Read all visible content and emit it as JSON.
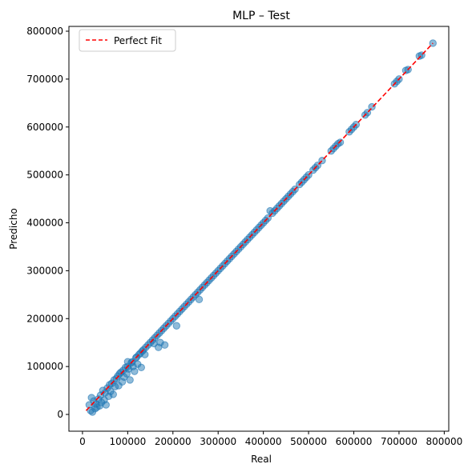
{
  "chart_data": {
    "type": "scatter",
    "title": "MLP – Test",
    "xlabel": "Real",
    "ylabel": "Predicho",
    "xlim": [
      -30000,
      810000
    ],
    "ylim": [
      -35000,
      810000
    ],
    "xticks": [
      0,
      100000,
      200000,
      300000,
      400000,
      500000,
      600000,
      700000,
      800000
    ],
    "yticks": [
      0,
      100000,
      200000,
      300000,
      400000,
      500000,
      600000,
      700000,
      800000
    ],
    "grid": false,
    "legend_position": "top-left",
    "series": [
      {
        "kind": "scatter",
        "color": "#1f77b4",
        "points": [
          [
            15000,
            20000
          ],
          [
            18000,
            8000
          ],
          [
            20000,
            35000
          ],
          [
            22000,
            5000
          ],
          [
            25000,
            28000
          ],
          [
            28000,
            12000
          ],
          [
            30000,
            22000
          ],
          [
            32000,
            15000
          ],
          [
            35000,
            32000
          ],
          [
            38000,
            18000
          ],
          [
            40000,
            40000
          ],
          [
            42000,
            25000
          ],
          [
            45000,
            50000
          ],
          [
            48000,
            30000
          ],
          [
            50000,
            45000
          ],
          [
            52000,
            20000
          ],
          [
            55000,
            55000
          ],
          [
            58000,
            38000
          ],
          [
            60000,
            62000
          ],
          [
            62000,
            48000
          ],
          [
            65000,
            65000
          ],
          [
            68000,
            42000
          ],
          [
            70000,
            72000
          ],
          [
            72000,
            58000
          ],
          [
            75000,
            75000
          ],
          [
            78000,
            80000
          ],
          [
            80000,
            60000
          ],
          [
            82000,
            85000
          ],
          [
            85000,
            88000
          ],
          [
            88000,
            68000
          ],
          [
            90000,
            92000
          ],
          [
            92000,
            78000
          ],
          [
            95000,
            98000
          ],
          [
            98000,
            85000
          ],
          [
            100000,
            100000
          ],
          [
            100000,
            110000
          ],
          [
            102000,
            95000
          ],
          [
            105000,
            72000
          ],
          [
            108000,
            108000
          ],
          [
            110000,
            110000
          ],
          [
            112000,
            100000
          ],
          [
            115000,
            90000
          ],
          [
            118000,
            118000
          ],
          [
            120000,
            120000
          ],
          [
            122000,
            105000
          ],
          [
            125000,
            125000
          ],
          [
            128000,
            128000
          ],
          [
            130000,
            98000
          ],
          [
            132000,
            132000
          ],
          [
            135000,
            135000
          ],
          [
            138000,
            125000
          ],
          [
            140000,
            140000
          ],
          [
            145000,
            145000
          ],
          [
            150000,
            150000
          ],
          [
            155000,
            155000
          ],
          [
            158000,
            148000
          ],
          [
            160000,
            160000
          ],
          [
            165000,
            165000
          ],
          [
            168000,
            140000
          ],
          [
            170000,
            170000
          ],
          [
            172000,
            150000
          ],
          [
            175000,
            175000
          ],
          [
            180000,
            180000
          ],
          [
            182000,
            145000
          ],
          [
            185000,
            185000
          ],
          [
            190000,
            190000
          ],
          [
            195000,
            195000
          ],
          [
            200000,
            200000
          ],
          [
            205000,
            205000
          ],
          [
            208000,
            185000
          ],
          [
            210000,
            210000
          ],
          [
            215000,
            215000
          ],
          [
            220000,
            220000
          ],
          [
            225000,
            225000
          ],
          [
            230000,
            230000
          ],
          [
            235000,
            235000
          ],
          [
            240000,
            240000
          ],
          [
            245000,
            245000
          ],
          [
            250000,
            250000
          ],
          [
            255000,
            255000
          ],
          [
            258000,
            240000
          ],
          [
            260000,
            260000
          ],
          [
            265000,
            265000
          ],
          [
            270000,
            270000
          ],
          [
            275000,
            275000
          ],
          [
            280000,
            280000
          ],
          [
            285000,
            285000
          ],
          [
            290000,
            290000
          ],
          [
            295000,
            295000
          ],
          [
            300000,
            300000
          ],
          [
            305000,
            305000
          ],
          [
            310000,
            310000
          ],
          [
            315000,
            315000
          ],
          [
            320000,
            320000
          ],
          [
            325000,
            325000
          ],
          [
            330000,
            330000
          ],
          [
            335000,
            335000
          ],
          [
            340000,
            340000
          ],
          [
            345000,
            345000
          ],
          [
            350000,
            350000
          ],
          [
            355000,
            355000
          ],
          [
            360000,
            360000
          ],
          [
            365000,
            365000
          ],
          [
            370000,
            370000
          ],
          [
            375000,
            375000
          ],
          [
            380000,
            380000
          ],
          [
            385000,
            385000
          ],
          [
            390000,
            390000
          ],
          [
            395000,
            395000
          ],
          [
            400000,
            400000
          ],
          [
            405000,
            405000
          ],
          [
            410000,
            410000
          ],
          [
            415000,
            425000
          ],
          [
            420000,
            420000
          ],
          [
            425000,
            425000
          ],
          [
            430000,
            430000
          ],
          [
            435000,
            435000
          ],
          [
            440000,
            440000
          ],
          [
            445000,
            445000
          ],
          [
            450000,
            450000
          ],
          [
            455000,
            455000
          ],
          [
            460000,
            460000
          ],
          [
            465000,
            465000
          ],
          [
            470000,
            470000
          ],
          [
            480000,
            480000
          ],
          [
            485000,
            485000
          ],
          [
            490000,
            490000
          ],
          [
            495000,
            495000
          ],
          [
            500000,
            500000
          ],
          [
            510000,
            510000
          ],
          [
            515000,
            515000
          ],
          [
            520000,
            520000
          ],
          [
            530000,
            530000
          ],
          [
            550000,
            550000
          ],
          [
            555000,
            555000
          ],
          [
            560000,
            560000
          ],
          [
            565000,
            565000
          ],
          [
            570000,
            568000
          ],
          [
            590000,
            590000
          ],
          [
            595000,
            595000
          ],
          [
            600000,
            600000
          ],
          [
            605000,
            605000
          ],
          [
            625000,
            625000
          ],
          [
            630000,
            630000
          ],
          [
            640000,
            642000
          ],
          [
            690000,
            690000
          ],
          [
            695000,
            695000
          ],
          [
            700000,
            700000
          ],
          [
            715000,
            718000
          ],
          [
            720000,
            720000
          ],
          [
            745000,
            748000
          ],
          [
            750000,
            750000
          ],
          [
            775000,
            775000
          ]
        ]
      },
      {
        "kind": "line",
        "name": "Perfect Fit",
        "color": "#ff0000",
        "dashed": true,
        "x": [
          8000,
          775000
        ],
        "y": [
          8000,
          775000
        ]
      }
    ]
  }
}
